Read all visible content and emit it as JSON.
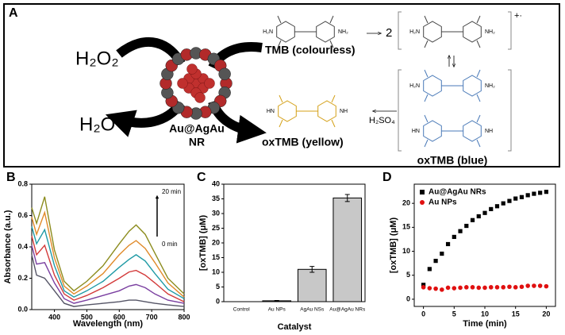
{
  "diagram": {
    "panel_label": "A",
    "reactant": "H₂O₂",
    "product": "H₂O",
    "catalyst_line1": "Au@AgAu",
    "catalyst_line2": "NR",
    "substrate": "TMB (colourless)",
    "product_yellow": "oxTMB (yellow)",
    "product_blue": "oxTMB (blue)",
    "coefficient": "2",
    "charge": "+·",
    "acid": "H₂SO₄",
    "amine_left": "H₂N",
    "amine_right": "NH₂",
    "imine_left": "HN",
    "imine_right": "NH"
  },
  "chart_data": [
    {
      "type": "line",
      "panel_label": "B",
      "xlabel": "Wavelength (nm)",
      "ylabel": "Absorbance (a.u.)",
      "annotations": [
        "20 min",
        "0 min"
      ],
      "x": [
        330,
        345,
        370,
        400,
        430,
        460,
        500,
        550,
        600,
        630,
        652,
        680,
        710,
        750,
        800
      ],
      "series": [
        {
          "color": "#555566",
          "values": [
            0.35,
            0.22,
            0.2,
            0.12,
            0.04,
            0.02,
            0.03,
            0.04,
            0.05,
            0.06,
            0.06,
            0.05,
            0.04,
            0.03,
            0.02
          ]
        },
        {
          "color": "#7a3fa0",
          "values": [
            0.41,
            0.29,
            0.3,
            0.17,
            0.07,
            0.04,
            0.06,
            0.09,
            0.12,
            0.15,
            0.16,
            0.14,
            0.1,
            0.06,
            0.04
          ]
        },
        {
          "color": "#d33a3a",
          "values": [
            0.47,
            0.35,
            0.41,
            0.22,
            0.1,
            0.06,
            0.09,
            0.14,
            0.2,
            0.24,
            0.25,
            0.22,
            0.17,
            0.1,
            0.05
          ]
        },
        {
          "color": "#1f9aa5",
          "values": [
            0.53,
            0.42,
            0.51,
            0.28,
            0.12,
            0.08,
            0.12,
            0.18,
            0.27,
            0.32,
            0.35,
            0.31,
            0.23,
            0.13,
            0.07
          ]
        },
        {
          "color": "#e08a2a",
          "values": [
            0.59,
            0.48,
            0.62,
            0.33,
            0.15,
            0.1,
            0.15,
            0.23,
            0.35,
            0.41,
            0.44,
            0.39,
            0.3,
            0.17,
            0.08
          ]
        },
        {
          "color": "#8c8c1e",
          "values": [
            0.65,
            0.55,
            0.72,
            0.38,
            0.18,
            0.12,
            0.18,
            0.28,
            0.42,
            0.5,
            0.54,
            0.48,
            0.36,
            0.2,
            0.1
          ]
        }
      ],
      "xlim": [
        330,
        800
      ],
      "xticks": [
        400,
        500,
        600,
        700,
        800
      ],
      "ylim": [
        0,
        0.8
      ],
      "yticks": [
        {
          "value": 0,
          "label": "0.0"
        },
        0.2,
        0.4,
        0.6,
        0.8
      ]
    },
    {
      "type": "bar",
      "panel_label": "C",
      "xlabel": "Catalyst",
      "ylabel": "[oxTMB] (μM)",
      "categories": [
        "Control",
        "Au NPs",
        "AgAu NSs",
        "Au@AgAu NRs"
      ],
      "values": [
        0,
        0.3,
        11,
        35.3
      ],
      "errors": [
        0,
        0.1,
        1,
        1.2
      ],
      "color": "#c8c8c8",
      "ylim": [
        0,
        40
      ],
      "yticks": [
        0,
        5,
        10,
        15,
        20,
        25,
        30,
        35,
        40
      ]
    },
    {
      "type": "scatter",
      "panel_label": "D",
      "xlabel": "Time (min)",
      "ylabel": "[oxTMB] (μM)",
      "legend": "top-left",
      "x": [
        0,
        1,
        2,
        3,
        4,
        5,
        6,
        7,
        8,
        9,
        10,
        11,
        12,
        13,
        14,
        15,
        16,
        17,
        18,
        19,
        20
      ],
      "series": [
        {
          "name": "Au@AgAu NRs",
          "color": "#000000",
          "marker": "square",
          "values": [
            3,
            6.3,
            8,
            9.5,
            11.5,
            13,
            14.2,
            15.3,
            16.5,
            17.3,
            18,
            18.8,
            19.4,
            20,
            20.5,
            21,
            21.3,
            21.7,
            22,
            22.2,
            22.4
          ]
        },
        {
          "name": "Au NPs",
          "color": "#e01010",
          "marker": "circle",
          "values": [
            2.5,
            2.3,
            2.2,
            2,
            2.4,
            2.3,
            2.4,
            2.5,
            2.5,
            2.4,
            2.4,
            2.5,
            2.5,
            2.5,
            2.6,
            2.5,
            2.6,
            2.8,
            2.8,
            2.8,
            2.7
          ]
        }
      ],
      "xlim": [
        -1.5,
        21.5
      ],
      "xticks": [
        0,
        5,
        10,
        15,
        20
      ],
      "ylim": [
        -1.5,
        24
      ],
      "yticks": [
        0,
        5,
        10,
        15,
        20
      ]
    }
  ]
}
